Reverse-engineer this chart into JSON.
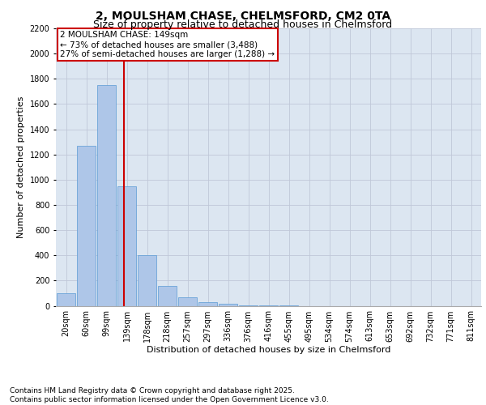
{
  "title_line1": "2, MOULSHAM CHASE, CHELMSFORD, CM2 0TA",
  "title_line2": "Size of property relative to detached houses in Chelmsford",
  "xlabel": "Distribution of detached houses by size in Chelmsford",
  "ylabel": "Number of detached properties",
  "categories": [
    "20sqm",
    "60sqm",
    "99sqm",
    "139sqm",
    "178sqm",
    "218sqm",
    "257sqm",
    "297sqm",
    "336sqm",
    "376sqm",
    "416sqm",
    "455sqm",
    "495sqm",
    "534sqm",
    "574sqm",
    "613sqm",
    "653sqm",
    "692sqm",
    "732sqm",
    "771sqm",
    "811sqm"
  ],
  "values": [
    100,
    1270,
    1750,
    950,
    400,
    155,
    65,
    30,
    15,
    5,
    2,
    1,
    0,
    0,
    0,
    0,
    0,
    0,
    0,
    0,
    0
  ],
  "bar_color": "#aec6e8",
  "bar_edge_color": "#5b9bd5",
  "vline_x": 2.85,
  "vline_color": "#cc0000",
  "annotation_text": "2 MOULSHAM CHASE: 149sqm\n← 73% of detached houses are smaller (3,488)\n27% of semi-detached houses are larger (1,288) →",
  "annotation_box_color": "#ffffff",
  "annotation_box_edge_color": "#cc0000",
  "ylim": [
    0,
    2200
  ],
  "yticks": [
    0,
    200,
    400,
    600,
    800,
    1000,
    1200,
    1400,
    1600,
    1800,
    2000,
    2200
  ],
  "grid_color": "#c0c8d8",
  "background_color": "#dce6f1",
  "footer_line1": "Contains HM Land Registry data © Crown copyright and database right 2025.",
  "footer_line2": "Contains public sector information licensed under the Open Government Licence v3.0.",
  "title_fontsize": 10,
  "subtitle_fontsize": 9,
  "axis_label_fontsize": 8,
  "tick_fontsize": 7,
  "annotation_fontsize": 7.5,
  "footer_fontsize": 6.5
}
